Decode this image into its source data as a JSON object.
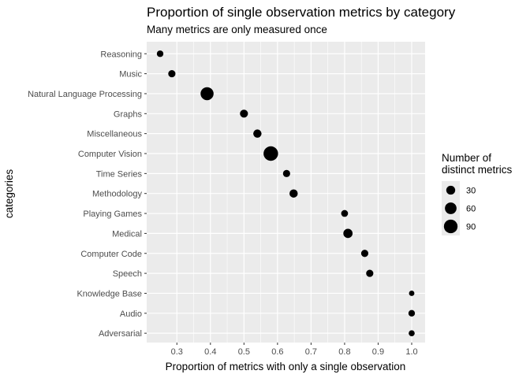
{
  "chart_data": {
    "type": "scatter",
    "title": "Proportion of single observation metrics by category",
    "subtitle": "Many metrics are only measured once",
    "xlabel": "Proportion of metrics with only a single observation",
    "ylabel": "categories",
    "xlim": [
      0.21,
      1.04
    ],
    "xticks": [
      "0.3",
      "0.4",
      "0.5",
      "0.6",
      "0.7",
      "0.8",
      "0.9",
      "1.0"
    ],
    "categories": [
      "Reasoning",
      "Music",
      "Natural Language Processing",
      "Graphs",
      "Miscellaneous",
      "Computer Vision",
      "Time Series",
      "Methodology",
      "Playing Games",
      "Medical",
      "Computer Code",
      "Speech",
      "Knowledge Base",
      "Audio",
      "Adversarial"
    ],
    "points": [
      {
        "category": "Reasoning",
        "x": 0.25,
        "size": 12
      },
      {
        "category": "Music",
        "x": 0.285,
        "size": 16
      },
      {
        "category": "Natural Language Processing",
        "x": 0.39,
        "size": 80
      },
      {
        "category": "Graphs",
        "x": 0.5,
        "size": 22
      },
      {
        "category": "Miscellaneous",
        "x": 0.54,
        "size": 24
      },
      {
        "category": "Computer Vision",
        "x": 0.58,
        "size": 105
      },
      {
        "category": "Time Series",
        "x": 0.627,
        "size": 16
      },
      {
        "category": "Methodology",
        "x": 0.648,
        "size": 24
      },
      {
        "category": "Playing Games",
        "x": 0.8,
        "size": 14
      },
      {
        "category": "Medical",
        "x": 0.81,
        "size": 33
      },
      {
        "category": "Computer Code",
        "x": 0.86,
        "size": 16
      },
      {
        "category": "Speech",
        "x": 0.875,
        "size": 16
      },
      {
        "category": "Knowledge Base",
        "x": 1.0,
        "size": 6
      },
      {
        "category": "Audio",
        "x": 1.0,
        "size": 12
      },
      {
        "category": "Adversarial",
        "x": 1.0,
        "size": 9
      }
    ],
    "legend": {
      "title_line1": "Number of",
      "title_line2": "distinct metrics",
      "position": "right",
      "entries": [
        {
          "label": "30",
          "size": 30
        },
        {
          "label": "60",
          "size": 60
        },
        {
          "label": "90",
          "size": 90
        }
      ]
    },
    "colors": {
      "panel": "#ebebeb",
      "grid": "#ffffff",
      "point": "#000000"
    }
  }
}
